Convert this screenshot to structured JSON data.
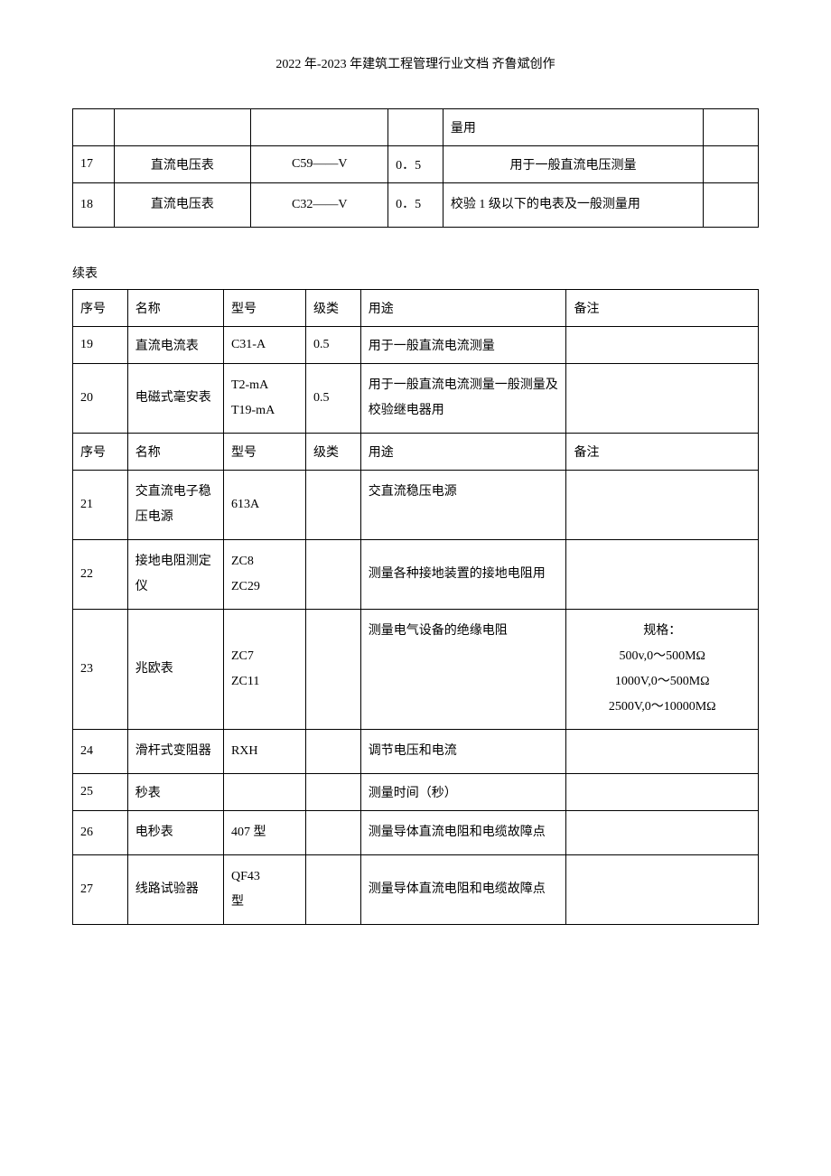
{
  "header": {
    "title": "2022 年-2023 年建筑工程管理行业文档  齐鲁斌创作"
  },
  "table1": {
    "rows": [
      {
        "seq": "",
        "name": "",
        "model": "",
        "class": "",
        "use": "量用",
        "note": ""
      },
      {
        "seq": "17",
        "name": "直流电压表",
        "model": "C59——V",
        "class": "0．5",
        "use": "用于一般直流电压测量",
        "note": ""
      },
      {
        "seq": "18",
        "name": "直流电压表",
        "model": "C32——V",
        "class": "0．5",
        "use": "校验 1 级以下的电表及一般测量用",
        "note": ""
      }
    ]
  },
  "continue_label": "续表",
  "table2": {
    "header1": {
      "seq": "序号",
      "name": "名称",
      "model": "型号",
      "class": "级类",
      "use": "用途",
      "note": "备注"
    },
    "rows_a": [
      {
        "seq": "19",
        "name": "直流电流表",
        "model": "C31-A",
        "class": "0.5",
        "use": "用于一般直流电流测量",
        "note": ""
      },
      {
        "seq": "20",
        "name": "电磁式毫安表",
        "model": "T2-mA\nT19-mA",
        "class": "0.5",
        "use": "用于一般直流电流测量一般测量及校验继电器用",
        "note": ""
      }
    ],
    "header2": {
      "seq": "序号",
      "name": "名称",
      "model": "型号",
      "class": "级类",
      "use": "用途",
      "note": "备注"
    },
    "rows_b": [
      {
        "seq": "21",
        "name": "交直流电子稳压电源",
        "model": "613A",
        "class": "",
        "use": "交直流稳压电源",
        "note": ""
      },
      {
        "seq": "22",
        "name": "接地电阻测定仪",
        "model": "ZC8\nZC29",
        "class": "",
        "use": "测量各种接地装置的接地电阻用",
        "note": ""
      },
      {
        "seq": "23",
        "name": "兆欧表",
        "model": "ZC7\nZC11",
        "class": "",
        "use": "测量电气设备的绝缘电阻",
        "note": "规格：\n500v,0～500MΩ\n1000V,0～500MΩ\n2500V,0～10000MΩ"
      },
      {
        "seq": "24",
        "name": "滑杆式变阻器",
        "model": "RXH",
        "class": "",
        "use": "调节电压和电流",
        "note": ""
      },
      {
        "seq": "25",
        "name": "秒表",
        "model": "",
        "class": "",
        "use": "测量时间（秒）",
        "note": ""
      },
      {
        "seq": "26",
        "name": "电秒表",
        "model": "407 型",
        "class": "",
        "use": "测量导体直流电阻和电缆故障点",
        "note": ""
      },
      {
        "seq": "27",
        "name": "线路试验器",
        "model": "QF43\n型",
        "class": "",
        "use": "测量导体直流电阻和电缆故障点",
        "note": ""
      }
    ]
  }
}
